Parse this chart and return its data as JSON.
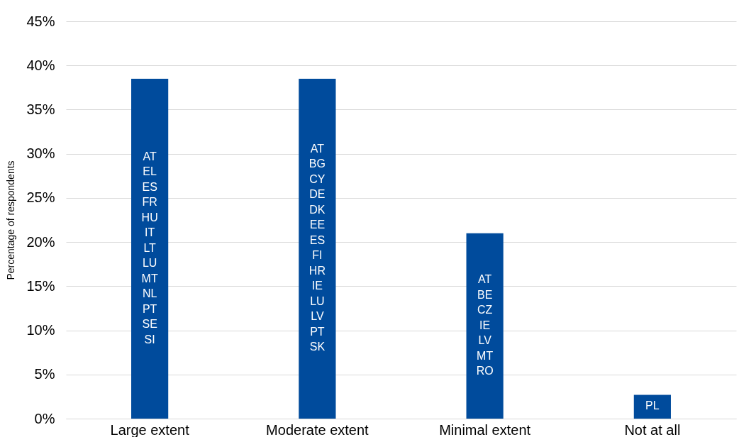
{
  "chart_data": {
    "type": "bar",
    "ylabel": "Percentage of respondents",
    "categories": [
      "Large extent",
      "Moderate extent",
      "Minimal extent",
      "Not at all"
    ],
    "values": [
      38.5,
      38.5,
      21.0,
      2.7
    ],
    "color": "#004b9c",
    "ylim": [
      0,
      45
    ],
    "yticks": [
      {
        "value": 0,
        "label": "0%"
      },
      {
        "value": 5,
        "label": "5%"
      },
      {
        "value": 10,
        "label": "10%"
      },
      {
        "value": 15,
        "label": "15%"
      },
      {
        "value": 20,
        "label": "20%"
      },
      {
        "value": 25,
        "label": "25%"
      },
      {
        "value": 30,
        "label": "30%"
      },
      {
        "value": 35,
        "label": "35%"
      },
      {
        "value": 40,
        "label": "40%"
      },
      {
        "value": 45,
        "label": "45%"
      }
    ],
    "grid": "y",
    "annotations": [
      "AT\nEL\nES\nFR\nHU\nIT\nLT\nLU\nMT\nNL\nPT\nSE\nSI",
      "AT\nBG\nCY\nDE\nDK\nEE\nES\nFI\nHR\nIE\nLU\nLV\nPT\nSK",
      "AT\nBE\nCZ\nIE\nLV\nMT\nRO",
      "PL"
    ]
  }
}
